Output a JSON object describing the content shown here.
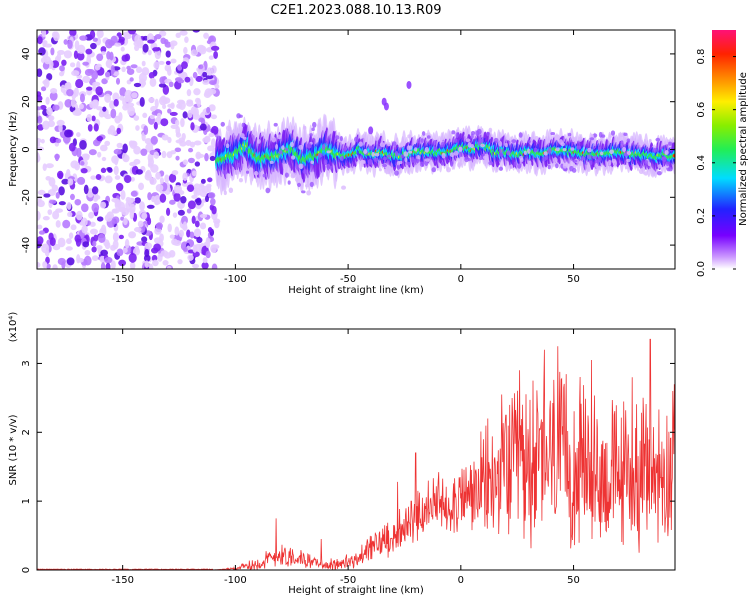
{
  "title": "C2E1.2023.088.10.13.R09",
  "chart_data": [
    {
      "type": "heatmap",
      "xlabel": "Height of straight line (km)",
      "ylabel": "Frequency (Hz)",
      "xlim": [
        -188,
        95
      ],
      "ylim": [
        -50,
        50
      ],
      "xticks": [
        -150,
        -100,
        -50,
        0,
        50
      ],
      "yticks": [
        -40,
        -20,
        0,
        20,
        40
      ],
      "colorbar": {
        "label": "Normalized spectral amplitude",
        "range": [
          0.0,
          0.9
        ],
        "ticks": [
          "0.0",
          "0.2",
          "0.4",
          "0.6",
          "0.8"
        ],
        "tick_values": [
          0.0,
          0.2,
          0.4,
          0.6,
          0.8
        ]
      },
      "noise_region_x": [
        -188,
        -108
      ],
      "echo_trace": {
        "x": [
          -108,
          -100,
          -95,
          -90,
          -85,
          -80,
          -75,
          -70,
          -65,
          -60,
          -55,
          -50,
          -45,
          -40,
          -35,
          -30,
          -25,
          -20,
          -15,
          -10,
          -5,
          0,
          5,
          10,
          15,
          20,
          25,
          30,
          35,
          40,
          45,
          50,
          55,
          60,
          65,
          70,
          75,
          80,
          85,
          90,
          95
        ],
        "y": [
          -5,
          -2,
          2,
          -4,
          -3,
          -2,
          0,
          -4,
          -3,
          1,
          -2,
          -3,
          0,
          -2,
          -1,
          -3,
          -2,
          -1,
          -1,
          -1,
          -1,
          1,
          0,
          2,
          -1,
          -1,
          -2,
          -1,
          -2,
          0,
          -1,
          -1,
          -2,
          -2,
          -1,
          -1,
          -2,
          -2,
          -3,
          -2,
          -3
        ],
        "peak_amplitude": 0.9
      }
    },
    {
      "type": "line",
      "xlabel": "Height of straight line (km)",
      "ylabel": "SNR (10 * v/v)",
      "scale_note": "(x10⁴)",
      "xlim": [
        -188,
        95
      ],
      "ylim": [
        0,
        3.5
      ],
      "xticks": [
        -150,
        -100,
        -50,
        0,
        50
      ],
      "yticks": [
        0,
        1,
        2,
        3
      ],
      "color": "#ee3333",
      "envelope": {
        "x": [
          -188,
          -110,
          -100,
          -90,
          -85,
          -80,
          -75,
          -70,
          -65,
          -60,
          -55,
          -50,
          -45,
          -40,
          -35,
          -30,
          -25,
          -20,
          -15,
          -10,
          -5,
          0,
          5,
          10,
          15,
          20,
          25,
          30,
          35,
          40,
          45,
          50,
          55,
          60,
          65,
          70,
          75,
          80,
          85,
          90,
          95
        ],
        "base": [
          0.0,
          0.0,
          0.02,
          0.08,
          0.15,
          0.2,
          0.18,
          0.15,
          0.1,
          0.06,
          0.08,
          0.1,
          0.15,
          0.3,
          0.4,
          0.5,
          0.55,
          0.7,
          0.85,
          0.9,
          0.95,
          1.0,
          1.05,
          1.15,
          1.2,
          1.35,
          1.4,
          1.4,
          1.45,
          1.5,
          1.45,
          1.4,
          1.35,
          1.3,
          1.25,
          1.3,
          1.3,
          1.25,
          1.3,
          1.35,
          1.4
        ],
        "spread": [
          0.0,
          0.0,
          0.02,
          0.15,
          0.2,
          0.25,
          0.2,
          0.15,
          0.1,
          0.08,
          0.12,
          0.15,
          0.2,
          0.25,
          0.3,
          0.35,
          0.4,
          0.45,
          0.5,
          0.55,
          0.6,
          0.65,
          0.7,
          0.9,
          1.1,
          1.3,
          1.4,
          1.5,
          1.5,
          1.5,
          1.5,
          1.45,
          1.4,
          1.35,
          1.3,
          1.3,
          1.3,
          1.3,
          1.3,
          1.3,
          1.3
        ]
      },
      "peaks": [
        {
          "x": -82,
          "y": 0.75
        },
        {
          "x": -62,
          "y": 0.45
        },
        {
          "x": -28,
          "y": 1.28
        },
        {
          "x": -22,
          "y": 1.0
        },
        {
          "x": -20,
          "y": 1.7
        },
        {
          "x": 12,
          "y": 2.2
        },
        {
          "x": 20,
          "y": 2.25
        },
        {
          "x": 26,
          "y": 2.9
        },
        {
          "x": 32,
          "y": 2.75
        },
        {
          "x": 37,
          "y": 3.2
        },
        {
          "x": 43,
          "y": 3.25
        },
        {
          "x": 58,
          "y": 3.05
        },
        {
          "x": 76,
          "y": 2.8
        },
        {
          "x": 84,
          "y": 3.35
        },
        {
          "x": 94,
          "y": 2.6
        }
      ]
    }
  ]
}
